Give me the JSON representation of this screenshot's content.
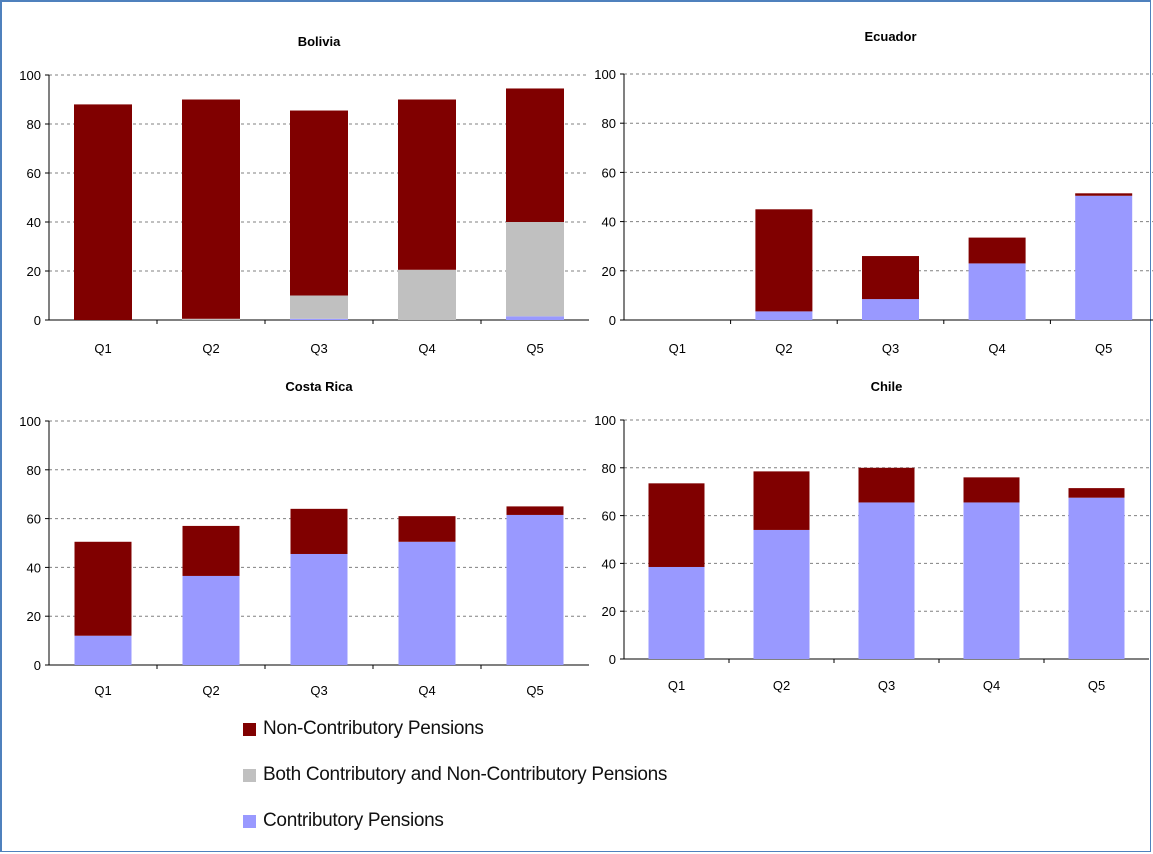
{
  "colors": {
    "non_contributory": "#800000",
    "both": "#c0c0c0",
    "contributory": "#9999ff",
    "grid": "#808080",
    "axis": "#000000",
    "frame": "#4f81bd"
  },
  "legend": [
    {
      "key": "non_contributory",
      "label": "Non-Contributory Pensions"
    },
    {
      "key": "both",
      "label": "Both Contributory and Non-Contributory Pensions"
    },
    {
      "key": "contributory",
      "label": "Contributory Pensions"
    }
  ],
  "chart_data": [
    {
      "type": "bar",
      "stacked": true,
      "title": "Bolivia",
      "categories": [
        "Q1",
        "Q2",
        "Q3",
        "Q4",
        "Q5"
      ],
      "yticks": [
        "0",
        "20",
        "40",
        "60",
        "80",
        "100"
      ],
      "ylim": [
        0,
        100
      ],
      "grid": true,
      "series": [
        {
          "name": "Contributory Pensions",
          "key": "contributory",
          "values": [
            0,
            0,
            0.5,
            0,
            1.5
          ]
        },
        {
          "name": "Both Contributory and Non-Contributory Pensions",
          "key": "both",
          "values": [
            0,
            0.5,
            9.5,
            20.5,
            38.5
          ]
        },
        {
          "name": "Non-Contributory Pensions",
          "key": "non_contributory",
          "values": [
            88,
            89.5,
            75.5,
            69.5,
            54.5
          ]
        }
      ]
    },
    {
      "type": "bar",
      "stacked": true,
      "title": "Ecuador",
      "categories": [
        "Q1",
        "Q2",
        "Q3",
        "Q4",
        "Q5"
      ],
      "yticks": [
        "0",
        "20",
        "40",
        "60",
        "80",
        "100"
      ],
      "ylim": [
        0,
        100
      ],
      "grid": true,
      "series": [
        {
          "name": "Contributory Pensions",
          "key": "contributory",
          "values": [
            0,
            3.5,
            8.5,
            23,
            50.5
          ]
        },
        {
          "name": "Both Contributory and Non-Contributory Pensions",
          "key": "both",
          "values": [
            0,
            0,
            0,
            0,
            0
          ]
        },
        {
          "name": "Non-Contributory Pensions",
          "key": "non_contributory",
          "values": [
            0,
            41.5,
            17.5,
            10.5,
            1
          ]
        }
      ]
    },
    {
      "type": "bar",
      "stacked": true,
      "title": "Costa Rica",
      "categories": [
        "Q1",
        "Q2",
        "Q3",
        "Q4",
        "Q5"
      ],
      "yticks": [
        "0",
        "20",
        "40",
        "60",
        "80",
        "100"
      ],
      "ylim": [
        0,
        100
      ],
      "grid": true,
      "series": [
        {
          "name": "Contributory Pensions",
          "key": "contributory",
          "values": [
            12,
            36.5,
            45.5,
            50.5,
            61.5
          ]
        },
        {
          "name": "Both Contributory and Non-Contributory Pensions",
          "key": "both",
          "values": [
            0,
            0,
            0,
            0,
            0
          ]
        },
        {
          "name": "Non-Contributory Pensions",
          "key": "non_contributory",
          "values": [
            38.5,
            20.5,
            18.5,
            10.5,
            3.5
          ]
        }
      ]
    },
    {
      "type": "bar",
      "stacked": true,
      "title": "Chile",
      "categories": [
        "Q1",
        "Q2",
        "Q3",
        "Q4",
        "Q5"
      ],
      "yticks": [
        "0",
        "20",
        "40",
        "60",
        "80",
        "100"
      ],
      "ylim": [
        0,
        100
      ],
      "grid": true,
      "series": [
        {
          "name": "Contributory Pensions",
          "key": "contributory",
          "values": [
            38.5,
            54,
            65.5,
            65.5,
            67.5
          ]
        },
        {
          "name": "Both Contributory and Non-Contributory Pensions",
          "key": "both",
          "values": [
            0,
            0,
            0,
            0,
            0
          ]
        },
        {
          "name": "Non-Contributory Pensions",
          "key": "non_contributory",
          "values": [
            35,
            24.5,
            14.5,
            10.5,
            4
          ]
        }
      ]
    }
  ]
}
